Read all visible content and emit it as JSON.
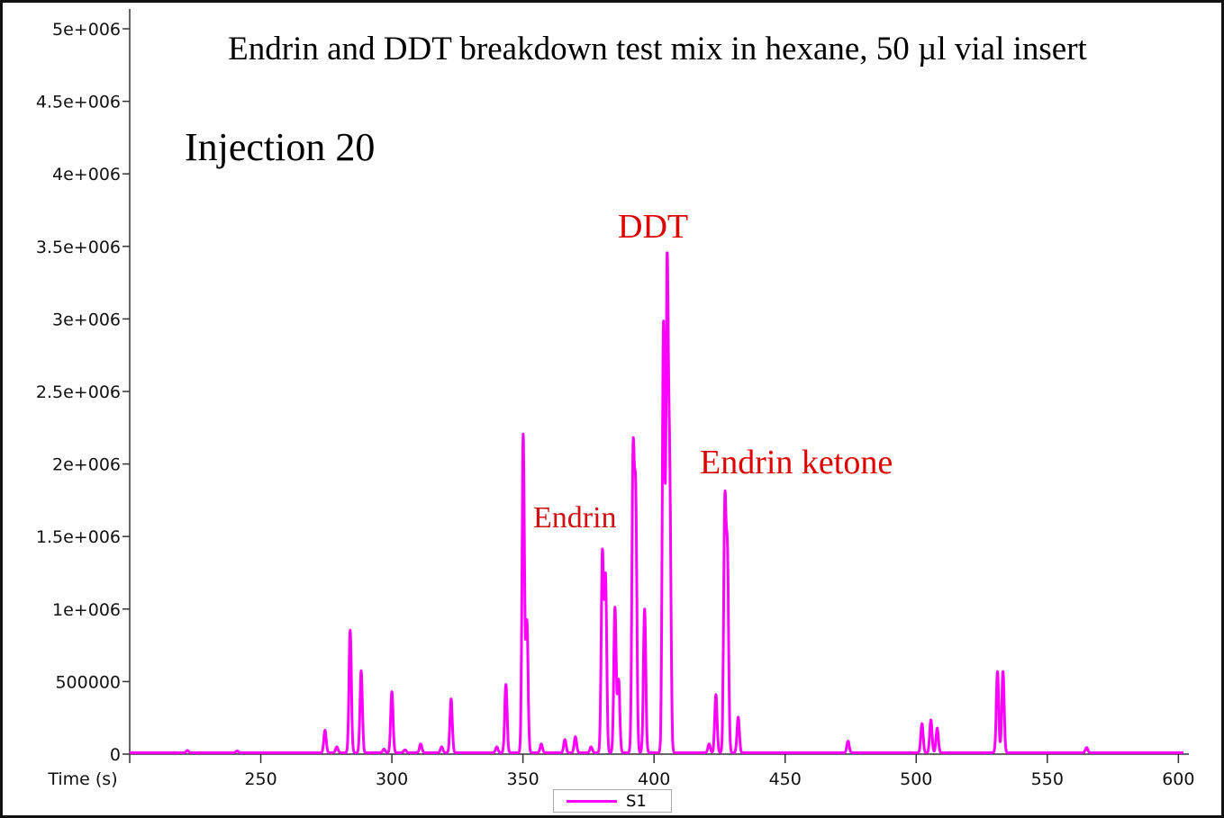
{
  "chart_data": {
    "type": "line",
    "title": "Endrin and DDT breakdown test mix in hexane, 50 µl vial insert",
    "subtitle": "Injection 20",
    "xlabel": "Time (s)",
    "ylabel": "",
    "xlim": [
      200,
      604
    ],
    "ylim": [
      0,
      5000000
    ],
    "x_ticks": [
      250,
      300,
      350,
      400,
      450,
      500,
      550,
      600
    ],
    "x_tick_labels": [
      "250",
      "300",
      "350",
      "400",
      "450",
      "500",
      "550",
      "600"
    ],
    "y_ticks": [
      0,
      500000,
      1000000,
      1500000,
      2000000,
      2500000,
      3000000,
      3500000,
      4000000,
      4500000,
      5000000
    ],
    "y_tick_labels": [
      "0",
      "500000",
      "1e+006",
      "1.5e+006",
      "2e+006",
      "2.5e+006",
      "3e+006",
      "3.5e+006",
      "4e+006",
      "4.5e+006",
      "5e+006"
    ],
    "grid": false,
    "legend_placement": "bottom-center",
    "annotations": [
      {
        "text": "DDT",
        "color": "#e00000"
      },
      {
        "text": "Endrin",
        "color": "#e00000"
      },
      {
        "text": "Endrin ketone",
        "color": "#e00000"
      }
    ],
    "series": [
      {
        "name": "S1",
        "color": "#ff00ff",
        "baseline": 10000,
        "peaks_time_intensity": [
          [
            222,
            15000
          ],
          [
            241,
            12000
          ],
          [
            274.5,
            155000
          ],
          [
            279,
            40000
          ],
          [
            284.1,
            845000
          ],
          [
            288.3,
            565000
          ],
          [
            297,
            25000
          ],
          [
            300,
            420000
          ],
          [
            305,
            20000
          ],
          [
            311,
            60000
          ],
          [
            319,
            40000
          ],
          [
            322.6,
            370000
          ],
          [
            340,
            40000
          ],
          [
            343.5,
            470000
          ],
          [
            350.1,
            2190000
          ],
          [
            351.5,
            900000
          ],
          [
            357,
            60000
          ],
          [
            366,
            90000
          ],
          [
            370,
            110000
          ],
          [
            376,
            40000
          ],
          [
            380.3,
            1370000
          ],
          [
            381.5,
            1200000
          ],
          [
            385.1,
            1000000
          ],
          [
            386.5,
            500000
          ],
          [
            392,
            1990000
          ],
          [
            393,
            1700000
          ],
          [
            396.4,
            990000
          ],
          [
            403.6,
            2950000
          ],
          [
            405,
            3270000
          ],
          [
            406,
            1800000
          ],
          [
            421,
            60000
          ],
          [
            423.6,
            400000
          ],
          [
            427,
            1670000
          ],
          [
            428,
            1300000
          ],
          [
            432.1,
            245000
          ],
          [
            474,
            80000
          ],
          [
            502.2,
            200000
          ],
          [
            505.6,
            225000
          ],
          [
            508,
            170000
          ],
          [
            531,
            560000
          ],
          [
            533.1,
            560000
          ],
          [
            565,
            35000
          ]
        ]
      }
    ]
  },
  "legend": {
    "label": "S1"
  }
}
